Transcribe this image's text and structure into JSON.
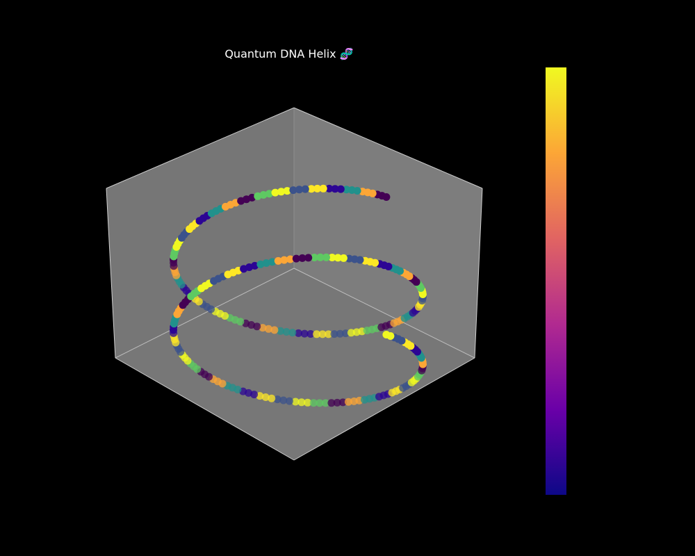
{
  "chart_data": {
    "type": "scatter",
    "projection": "3d",
    "title": "Quantum DNA Helix 🧬",
    "xlabel": "",
    "ylabel": "",
    "zlabel": "",
    "grid": false,
    "axis_ticks": false,
    "background": "#000000",
    "pane_color": "#7a7a7a",
    "colormap": "plasma",
    "colormap_stops": [
      "#0d0887",
      "#6a00a8",
      "#b12a90",
      "#e16462",
      "#fca636",
      "#f0f921"
    ],
    "marker_palette": [
      "#440154",
      "#3b528b",
      "#21918c",
      "#5ec962",
      "#fde725",
      "#fca636",
      "#f0f921",
      "#2c0594"
    ],
    "colorbar": true,
    "colorbar_placement": "right",
    "strand": {
      "turns": 2,
      "points": 260
    }
  }
}
